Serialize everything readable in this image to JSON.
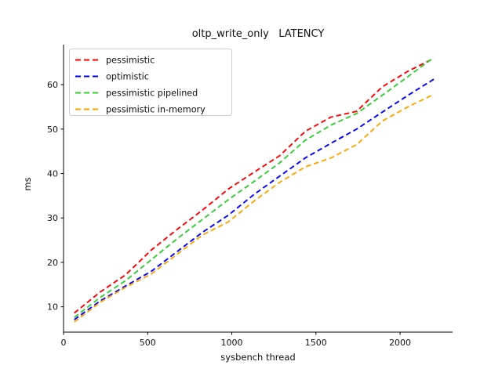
{
  "title": "oltp_write_only   LATENCY",
  "xlabel": "sysbench thread",
  "ylabel": "ms",
  "chart_data": {
    "type": "line",
    "line_style": "dashed",
    "grid": false,
    "legend_position": "upper left",
    "x": [
      64,
      217,
      369,
      522,
      674,
      827,
      979,
      1132,
      1284,
      1437,
      1589,
      1742,
      1894,
      2047,
      2200
    ],
    "series": [
      {
        "name": "pessimistic",
        "color": "#ff0000",
        "values": [
          8.6,
          13.3,
          17.2,
          22.8,
          27.4,
          31.8,
          36.5,
          40.3,
          44.0,
          49.5,
          52.7,
          54.0,
          59.5,
          63.0,
          65.9
        ]
      },
      {
        "name": "optimistic",
        "color": "#0000ff",
        "values": [
          7.1,
          11.3,
          14.7,
          18.0,
          22.4,
          26.8,
          30.6,
          35.3,
          39.4,
          43.5,
          46.8,
          50.0,
          53.8,
          57.6,
          61.2
        ]
      },
      {
        "name": "pessimistic pipelined",
        "color": "#32cd32",
        "values": [
          7.6,
          12.1,
          15.9,
          20.6,
          25.3,
          29.7,
          34.1,
          38.2,
          42.4,
          47.5,
          50.9,
          53.5,
          57.6,
          61.8,
          66.1
        ]
      },
      {
        "name": "pessimistic in-memory",
        "color": "#ffa500",
        "values": [
          6.6,
          11.0,
          14.4,
          17.4,
          21.8,
          26.2,
          29.1,
          33.8,
          38.0,
          41.5,
          43.5,
          46.5,
          51.8,
          55.0,
          57.8
        ]
      }
    ],
    "x_ticks": [
      0,
      500,
      1000,
      1500,
      2000
    ],
    "y_ticks": [
      10,
      20,
      30,
      40,
      50,
      60
    ],
    "xlim": [
      0,
      2312
    ],
    "ylim": [
      4.3,
      69.0
    ]
  },
  "colors": {
    "spine": "#000000",
    "legend_border": "#cccccc",
    "background": "#ffffff"
  }
}
